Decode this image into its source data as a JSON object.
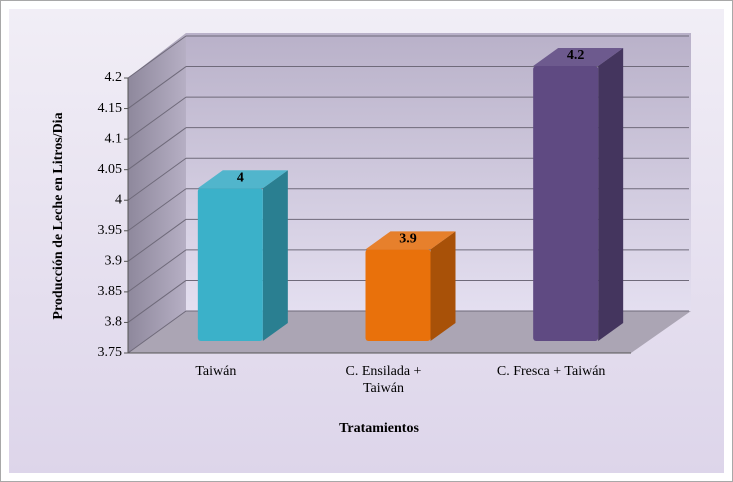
{
  "chart_data": {
    "type": "bar3d",
    "categories": [
      "Taiwán",
      "C. Ensilada + Taiwán",
      "C. Fresca + Taiwán"
    ],
    "values": [
      4,
      3.9,
      4.2
    ],
    "colors": [
      "#3bb1c9",
      "#e9710b",
      "#5f4a82"
    ],
    "ylim": [
      3.75,
      4.2
    ],
    "yticks": [
      3.75,
      3.8,
      3.85,
      3.9,
      3.95,
      4,
      4.05,
      4.1,
      4.15,
      4.2
    ],
    "ylabel": "Producción  de Leche en Litros/Dia",
    "xlabel": "Tratamientos",
    "grid": true
  }
}
